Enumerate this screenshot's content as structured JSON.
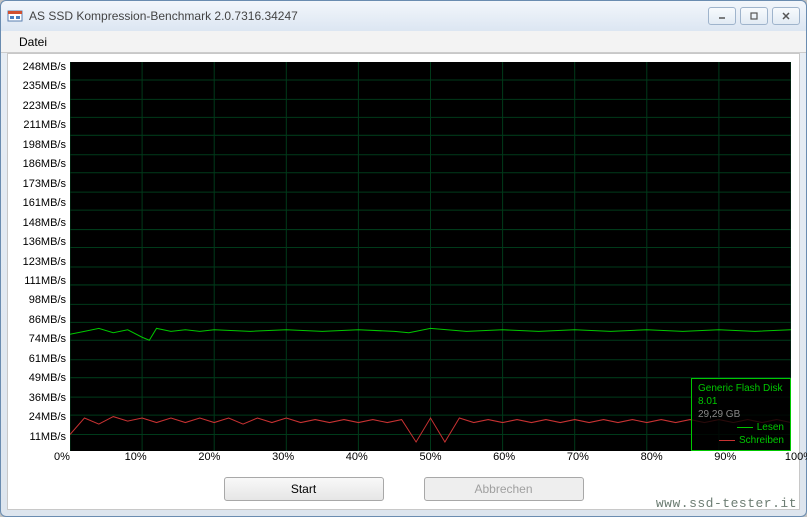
{
  "window": {
    "title": "AS SSD Kompression-Benchmark 2.0.7316.34247"
  },
  "menu": {
    "file": "Datei"
  },
  "chart": {
    "type": "line",
    "background_color": "#000000",
    "grid_color": "#003a1a",
    "axis_fontsize": 11,
    "y_max": 260,
    "y_min": 0,
    "y_ticks": [
      248,
      235,
      223,
      211,
      198,
      186,
      173,
      161,
      148,
      136,
      123,
      111,
      98,
      86,
      74,
      61,
      49,
      36,
      24,
      11
    ],
    "y_unit": "MB/s",
    "x_ticks": [
      0,
      10,
      20,
      30,
      40,
      50,
      60,
      70,
      80,
      90,
      100
    ],
    "x_unit": "%",
    "series": {
      "read": {
        "label": "Lesen",
        "color": "#00c800",
        "line_width": 1,
        "points": [
          {
            "x": 0,
            "y": 78
          },
          {
            "x": 2,
            "y": 80
          },
          {
            "x": 4,
            "y": 82
          },
          {
            "x": 6,
            "y": 79
          },
          {
            "x": 8,
            "y": 81
          },
          {
            "x": 10,
            "y": 76
          },
          {
            "x": 11,
            "y": 74
          },
          {
            "x": 12,
            "y": 82
          },
          {
            "x": 14,
            "y": 80
          },
          {
            "x": 16,
            "y": 81
          },
          {
            "x": 18,
            "y": 80
          },
          {
            "x": 20,
            "y": 81
          },
          {
            "x": 25,
            "y": 80
          },
          {
            "x": 30,
            "y": 81
          },
          {
            "x": 35,
            "y": 80
          },
          {
            "x": 40,
            "y": 81
          },
          {
            "x": 45,
            "y": 80
          },
          {
            "x": 47,
            "y": 79
          },
          {
            "x": 50,
            "y": 82
          },
          {
            "x": 55,
            "y": 80
          },
          {
            "x": 60,
            "y": 81
          },
          {
            "x": 65,
            "y": 80
          },
          {
            "x": 70,
            "y": 81
          },
          {
            "x": 75,
            "y": 80
          },
          {
            "x": 80,
            "y": 81
          },
          {
            "x": 85,
            "y": 80
          },
          {
            "x": 90,
            "y": 81
          },
          {
            "x": 95,
            "y": 80
          },
          {
            "x": 100,
            "y": 81
          }
        ]
      },
      "write": {
        "label": "Schreiben",
        "color": "#c83232",
        "line_width": 1,
        "points": [
          {
            "x": 0,
            "y": 11
          },
          {
            "x": 2,
            "y": 22
          },
          {
            "x": 4,
            "y": 18
          },
          {
            "x": 6,
            "y": 23
          },
          {
            "x": 8,
            "y": 20
          },
          {
            "x": 10,
            "y": 22
          },
          {
            "x": 12,
            "y": 19
          },
          {
            "x": 14,
            "y": 22
          },
          {
            "x": 16,
            "y": 19
          },
          {
            "x": 18,
            "y": 22
          },
          {
            "x": 20,
            "y": 19
          },
          {
            "x": 22,
            "y": 22
          },
          {
            "x": 24,
            "y": 18
          },
          {
            "x": 26,
            "y": 22
          },
          {
            "x": 28,
            "y": 19
          },
          {
            "x": 30,
            "y": 22
          },
          {
            "x": 32,
            "y": 19
          },
          {
            "x": 34,
            "y": 21
          },
          {
            "x": 36,
            "y": 19
          },
          {
            "x": 38,
            "y": 21
          },
          {
            "x": 40,
            "y": 19
          },
          {
            "x": 42,
            "y": 21
          },
          {
            "x": 44,
            "y": 19
          },
          {
            "x": 46,
            "y": 21
          },
          {
            "x": 48,
            "y": 6
          },
          {
            "x": 50,
            "y": 22
          },
          {
            "x": 52,
            "y": 6
          },
          {
            "x": 54,
            "y": 22
          },
          {
            "x": 56,
            "y": 19
          },
          {
            "x": 58,
            "y": 21
          },
          {
            "x": 60,
            "y": 19
          },
          {
            "x": 62,
            "y": 21
          },
          {
            "x": 64,
            "y": 19
          },
          {
            "x": 66,
            "y": 21
          },
          {
            "x": 68,
            "y": 19
          },
          {
            "x": 70,
            "y": 21
          },
          {
            "x": 72,
            "y": 19
          },
          {
            "x": 74,
            "y": 21
          },
          {
            "x": 76,
            "y": 19
          },
          {
            "x": 78,
            "y": 21
          },
          {
            "x": 80,
            "y": 19
          },
          {
            "x": 82,
            "y": 21
          },
          {
            "x": 84,
            "y": 19
          },
          {
            "x": 86,
            "y": 21
          },
          {
            "x": 88,
            "y": 19
          },
          {
            "x": 90,
            "y": 21
          },
          {
            "x": 92,
            "y": 19
          },
          {
            "x": 94,
            "y": 21
          },
          {
            "x": 96,
            "y": 19
          },
          {
            "x": 98,
            "y": 21
          },
          {
            "x": 100,
            "y": 19
          }
        ]
      }
    }
  },
  "legend": {
    "device": "Generic Flash Disk",
    "firmware": "8.01",
    "capacity": "29,29 GB",
    "border_color": "#00c800",
    "text_color": "#00c800"
  },
  "buttons": {
    "start": "Start",
    "cancel": "Abbrechen"
  },
  "watermark": "www.ssd-tester.it"
}
